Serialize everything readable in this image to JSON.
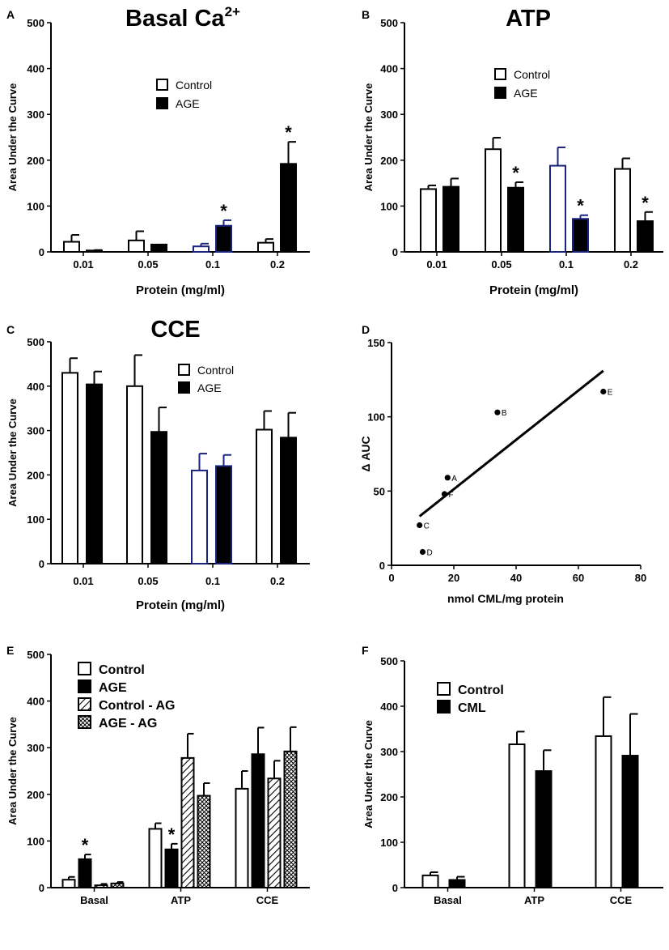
{
  "colors": {
    "control": "#ffffff",
    "age": "#000000",
    "axis": "#000000",
    "control_dark_outline": "#1a237e"
  },
  "chart_data": [
    {
      "panel": "A",
      "type": "bar",
      "title": "Basal Ca",
      "title_sup": "2+",
      "xlabel": "Protein (mg/ml)",
      "ylabel": "Area Under the Curve",
      "ylim": [
        0,
        500
      ],
      "yticks": [
        "0",
        "100",
        "200",
        "300",
        "400",
        "500"
      ],
      "categories": [
        "0.01",
        "0.05",
        "0.1",
        "0.2"
      ],
      "legend": [
        "Control",
        "AGE"
      ],
      "series": [
        {
          "name": "Control",
          "values": [
            22,
            25,
            12,
            20
          ],
          "errors": [
            15,
            20,
            6,
            8
          ]
        },
        {
          "name": "AGE",
          "values": [
            3,
            16,
            57,
            192
          ],
          "errors": [
            1,
            0,
            12,
            48
          ]
        }
      ],
      "annotations": [
        {
          "series": 1,
          "index": 2,
          "text": "*"
        },
        {
          "series": 1,
          "index": 3,
          "text": "*"
        }
      ]
    },
    {
      "panel": "B",
      "type": "bar",
      "title": "ATP",
      "xlabel": "Protein (mg/ml)",
      "ylabel": "Area Under the Curve",
      "ylim": [
        0,
        500
      ],
      "yticks": [
        "0",
        "100",
        "200",
        "300",
        "400",
        "500"
      ],
      "categories": [
        "0.01",
        "0.05",
        "0.1",
        "0.2"
      ],
      "legend": [
        "Control",
        "AGE"
      ],
      "series": [
        {
          "name": "Control",
          "values": [
            137,
            224,
            188,
            181
          ],
          "errors": [
            8,
            25,
            40,
            23
          ]
        },
        {
          "name": "AGE",
          "values": [
            142,
            140,
            72,
            67
          ],
          "errors": [
            18,
            12,
            8,
            20
          ]
        }
      ],
      "annotations": [
        {
          "series": 1,
          "index": 1,
          "text": "*"
        },
        {
          "series": 1,
          "index": 2,
          "text": "*"
        },
        {
          "series": 1,
          "index": 3,
          "text": "*"
        }
      ]
    },
    {
      "panel": "C",
      "type": "bar",
      "title": "CCE",
      "xlabel": "Protein (mg/ml)",
      "ylabel": "Area Under the Curve",
      "ylim": [
        0,
        500
      ],
      "yticks": [
        "0",
        "100",
        "200",
        "300",
        "400",
        "500"
      ],
      "categories": [
        "0.01",
        "0.05",
        "0.1",
        "0.2"
      ],
      "legend": [
        "Control",
        "AGE"
      ],
      "series": [
        {
          "name": "Control",
          "values": [
            430,
            400,
            210,
            302
          ],
          "errors": [
            33,
            70,
            38,
            42
          ]
        },
        {
          "name": "AGE",
          "values": [
            404,
            297,
            220,
            284
          ],
          "errors": [
            29,
            55,
            25,
            56
          ]
        }
      ],
      "annotations": []
    },
    {
      "panel": "D",
      "type": "scatter",
      "xlabel": "nmol CML/mg protein",
      "ylabel": "Δ AUC",
      "xlim": [
        0,
        80
      ],
      "ylim": [
        0,
        150
      ],
      "xticks": [
        "0",
        "20",
        "40",
        "60",
        "80"
      ],
      "yticks": [
        "0",
        "50",
        "100",
        "150"
      ],
      "points": [
        {
          "label": "A",
          "x": 18,
          "y": 59
        },
        {
          "label": "B",
          "x": 34,
          "y": 103
        },
        {
          "label": "C",
          "x": 9,
          "y": 27
        },
        {
          "label": "D",
          "x": 10,
          "y": 9
        },
        {
          "label": "E",
          "x": 68,
          "y": 117
        },
        {
          "label": "F",
          "x": 17,
          "y": 48
        }
      ],
      "fit_line": {
        "x": [
          9,
          68
        ],
        "y": [
          33,
          131
        ]
      }
    },
    {
      "panel": "E",
      "type": "bar",
      "ylabel": "Area Under the Curve",
      "ylim": [
        0,
        500
      ],
      "yticks": [
        "0",
        "100",
        "200",
        "300",
        "400",
        "500"
      ],
      "categories": [
        "Basal",
        "ATP",
        "CCE"
      ],
      "legend": [
        "Control",
        "AGE",
        "Control - AG",
        "AGE - AG"
      ],
      "series": [
        {
          "name": "Control",
          "values": [
            17,
            126,
            212
          ],
          "errors": [
            6,
            12,
            38
          ]
        },
        {
          "name": "AGE",
          "values": [
            61,
            82,
            286
          ],
          "errors": [
            10,
            12,
            57
          ]
        },
        {
          "name": "Control - AG",
          "values": [
            5,
            278,
            234
          ],
          "errors": [
            3,
            52,
            38
          ]
        },
        {
          "name": "AGE - AG",
          "values": [
            9,
            197,
            292
          ],
          "errors": [
            3,
            27,
            52
          ]
        }
      ],
      "annotations": [
        {
          "series": 1,
          "index": 0,
          "text": "*"
        },
        {
          "series": 1,
          "index": 1,
          "text": "*"
        }
      ]
    },
    {
      "panel": "F",
      "type": "bar",
      "ylabel": "Area Under the Curve",
      "ylim": [
        0,
        500
      ],
      "yticks": [
        "0",
        "100",
        "200",
        "300",
        "400",
        "500"
      ],
      "categories": [
        "Basal",
        "ATP",
        "CCE"
      ],
      "legend": [
        "Control",
        "CML"
      ],
      "series": [
        {
          "name": "Control",
          "values": [
            27,
            316,
            334
          ],
          "errors": [
            7,
            28,
            86
          ]
        },
        {
          "name": "CML",
          "values": [
            17,
            257,
            291
          ],
          "errors": [
            7,
            46,
            92
          ]
        }
      ],
      "annotations": []
    }
  ]
}
